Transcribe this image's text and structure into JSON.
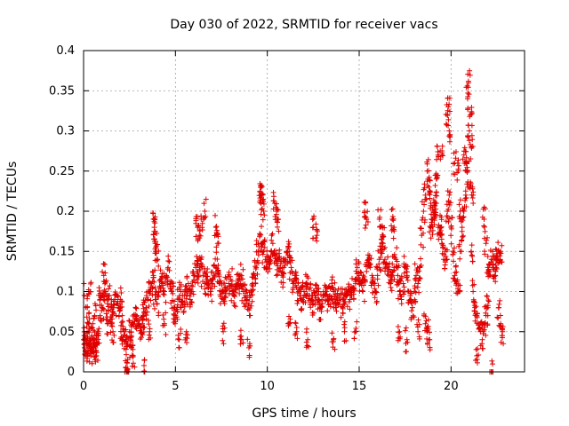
{
  "chart_data": {
    "type": "scatter",
    "title": "Day 030 of 2022, SRMTID for receiver vacs",
    "xlabel": "GPS time / hours",
    "ylabel": "SRMTID / TECUs",
    "xlim": [
      0,
      24
    ],
    "ylim": [
      0,
      0.4
    ],
    "xticks": [
      0,
      5,
      10,
      15,
      20
    ],
    "yticks": [
      0,
      0.05,
      0.1,
      0.15,
      0.2,
      0.25,
      0.3,
      0.35,
      0.4
    ],
    "xtick_labels": [
      "0",
      "5",
      "10",
      "15",
      "20"
    ],
    "ytick_labels": [
      "0",
      "0.05",
      "0.1",
      "0.15",
      "0.2",
      "0.25",
      "0.3",
      "0.35",
      "0.4"
    ],
    "grid": true,
    "marker": "plus",
    "color": "#e00000",
    "series": [
      {
        "name": "SRMTID",
        "x": [
          0.0,
          0.05,
          0.1,
          0.15,
          0.2,
          0.25,
          0.3,
          0.35,
          0.4,
          0.45,
          0.5,
          0.55,
          0.6,
          0.65,
          0.7,
          0.75,
          0.8,
          0.9,
          1.0,
          1.1,
          1.2,
          1.3,
          1.4,
          1.5,
          1.6,
          1.7,
          1.8,
          1.9,
          2.0,
          2.1,
          2.2,
          2.3,
          2.4,
          2.5,
          2.6,
          2.7,
          2.8,
          2.9,
          3.0,
          3.1,
          3.2,
          3.25,
          3.3,
          3.4,
          3.5,
          3.6,
          3.7,
          3.8,
          3.9,
          4.0,
          4.1,
          4.2,
          4.3,
          4.4,
          4.5,
          4.6,
          4.7,
          4.8,
          4.9,
          5.0,
          5.1,
          5.2,
          5.3,
          5.4,
          5.5,
          5.6,
          5.7,
          5.8,
          5.9,
          6.0,
          6.1,
          6.2,
          6.3,
          6.4,
          6.5,
          6.6,
          6.7,
          6.8,
          6.9,
          7.0,
          7.1,
          7.2,
          7.3,
          7.4,
          7.5,
          7.6,
          7.7,
          7.8,
          7.9,
          8.0,
          8.1,
          8.2,
          8.3,
          8.4,
          8.5,
          8.6,
          8.7,
          8.8,
          8.9,
          9.0,
          9.1,
          9.2,
          9.3,
          9.4,
          9.5,
          9.6,
          9.7,
          9.8,
          9.9,
          10.0,
          10.1,
          10.2,
          10.3,
          10.4,
          10.5,
          10.6,
          10.7,
          10.8,
          10.9,
          11.0,
          11.1,
          11.2,
          11.3,
          11.4,
          11.5,
          11.6,
          11.7,
          11.8,
          11.9,
          12.0,
          12.1,
          12.2,
          12.3,
          12.4,
          12.5,
          12.6,
          12.7,
          12.8,
          12.9,
          13.0,
          13.1,
          13.2,
          13.3,
          13.4,
          13.5,
          13.6,
          13.7,
          13.8,
          13.9,
          14.0,
          14.1,
          14.2,
          14.3,
          14.4,
          14.5,
          14.6,
          14.7,
          14.8,
          14.9,
          15.0,
          15.1,
          15.2,
          15.3,
          15.4,
          15.5,
          15.6,
          15.7,
          15.8,
          15.9,
          16.0,
          16.1,
          16.2,
          16.3,
          16.4,
          16.5,
          16.6,
          16.7,
          16.8,
          16.9,
          17.0,
          17.1,
          17.2,
          17.3,
          17.4,
          17.5,
          17.6,
          17.7,
          17.8,
          17.9,
          18.0,
          18.1,
          18.2,
          18.3,
          18.4,
          18.5,
          18.6,
          18.7,
          18.8,
          18.9,
          19.0,
          19.1,
          19.2,
          19.3,
          19.4,
          19.5,
          19.6,
          19.7,
          19.8,
          19.9,
          20.0,
          20.1,
          20.2,
          20.3,
          20.4,
          20.5,
          20.6,
          20.7,
          20.8,
          20.9,
          21.0,
          21.1,
          21.2,
          21.3,
          21.4,
          21.5,
          21.6,
          21.7,
          21.8,
          21.9,
          22.0,
          22.1,
          22.2,
          22.3,
          22.4,
          22.5,
          22.6,
          22.7,
          22.8,
          0.02,
          0.2,
          0.35,
          0.6,
          0.9,
          1.3,
          1.6,
          2.3,
          2.4,
          3.3,
          3.8,
          3.85,
          3.9,
          3.95,
          4.0,
          6.2,
          6.3,
          6.4,
          6.6,
          7.2,
          7.3,
          9.6,
          9.65,
          9.7,
          9.8,
          10.4,
          10.5,
          10.6,
          12.5,
          12.7,
          15.3,
          15.4,
          16.1,
          16.3,
          16.8,
          16.9,
          19.4,
          19.5,
          19.8,
          19.85,
          19.9,
          20.2,
          20.4,
          20.5,
          20.7,
          20.8,
          20.9,
          20.95,
          21.0,
          21.05,
          21.1,
          21.2,
          21.8,
          21.9,
          22.0,
          22.5,
          22.6,
          22.7,
          18.6,
          18.7,
          18.8,
          18.9,
          19.0,
          19.1,
          19.2,
          19.3,
          1.1,
          1.5,
          2.1,
          2.6,
          2.7,
          3.6,
          4.4,
          5.2,
          5.6,
          7.6,
          8.6,
          9.0,
          11.2,
          11.6,
          12.2,
          13.6,
          14.2,
          14.8,
          17.2,
          17.6,
          18.2,
          21.4,
          22.2
        ],
        "y": [
          0.04,
          0.03,
          0.045,
          0.025,
          0.035,
          0.05,
          0.06,
          0.03,
          0.02,
          0.045,
          0.025,
          0.035,
          0.04,
          0.03,
          0.02,
          0.035,
          0.05,
          0.07,
          0.08,
          0.09,
          0.1,
          0.085,
          0.095,
          0.08,
          0.075,
          0.09,
          0.085,
          0.08,
          0.09,
          0.07,
          0.05,
          0.04,
          0.035,
          0.05,
          0.045,
          0.06,
          0.065,
          0.07,
          0.06,
          0.055,
          0.06,
          0.07,
          0.075,
          0.08,
          0.09,
          0.1,
          0.11,
          0.12,
          0.09,
          0.085,
          0.1,
          0.115,
          0.11,
          0.1,
          0.12,
          0.13,
          0.11,
          0.1,
          0.08,
          0.07,
          0.075,
          0.09,
          0.1,
          0.085,
          0.095,
          0.1,
          0.11,
          0.09,
          0.1,
          0.12,
          0.13,
          0.125,
          0.13,
          0.14,
          0.12,
          0.11,
          0.115,
          0.105,
          0.1,
          0.11,
          0.12,
          0.13,
          0.125,
          0.11,
          0.1,
          0.09,
          0.1,
          0.105,
          0.11,
          0.115,
          0.1,
          0.095,
          0.105,
          0.11,
          0.115,
          0.12,
          0.1,
          0.095,
          0.09,
          0.085,
          0.095,
          0.11,
          0.12,
          0.13,
          0.15,
          0.17,
          0.16,
          0.15,
          0.14,
          0.13,
          0.14,
          0.15,
          0.16,
          0.145,
          0.135,
          0.14,
          0.13,
          0.12,
          0.13,
          0.14,
          0.15,
          0.145,
          0.13,
          0.11,
          0.12,
          0.115,
          0.1,
          0.095,
          0.09,
          0.1,
          0.11,
          0.105,
          0.095,
          0.09,
          0.085,
          0.095,
          0.1,
          0.09,
          0.08,
          0.085,
          0.095,
          0.1,
          0.09,
          0.095,
          0.105,
          0.1,
          0.09,
          0.085,
          0.095,
          0.09,
          0.08,
          0.085,
          0.095,
          0.1,
          0.09,
          0.095,
          0.105,
          0.115,
          0.13,
          0.12,
          0.11,
          0.1,
          0.115,
          0.125,
          0.14,
          0.13,
          0.12,
          0.11,
          0.1,
          0.12,
          0.14,
          0.15,
          0.16,
          0.14,
          0.13,
          0.12,
          0.11,
          0.12,
          0.13,
          0.14,
          0.12,
          0.1,
          0.09,
          0.11,
          0.13,
          0.12,
          0.1,
          0.09,
          0.08,
          0.1,
          0.12,
          0.11,
          0.13,
          0.17,
          0.2,
          0.22,
          0.25,
          0.23,
          0.21,
          0.19,
          0.2,
          0.21,
          0.18,
          0.17,
          0.16,
          0.14,
          0.15,
          0.2,
          0.22,
          0.18,
          0.15,
          0.12,
          0.11,
          0.1,
          0.15,
          0.18,
          0.2,
          0.22,
          0.25,
          0.23,
          0.15,
          0.1,
          0.08,
          0.07,
          0.06,
          0.05,
          0.04,
          0.06,
          0.07,
          0.08,
          0.12,
          0.14,
          0.13,
          0.12,
          0.14,
          0.08,
          0.06,
          0.05,
          0.11,
          0.08,
          0.1,
          0.07,
          0.09,
          0.06,
          0.05,
          0.005,
          0.003,
          0.001,
          0.19,
          0.18,
          0.16,
          0.15,
          0.14,
          0.18,
          0.17,
          0.19,
          0.2,
          0.18,
          0.16,
          0.225,
          0.21,
          0.22,
          0.2,
          0.21,
          0.2,
          0.19,
          0.18,
          0.17,
          0.2,
          0.19,
          0.19,
          0.17,
          0.19,
          0.18,
          0.18,
          0.27,
          0.32,
          0.33,
          0.3,
          0.26,
          0.25,
          0.2,
          0.27,
          0.26,
          0.34,
          0.36,
          0.3,
          0.32,
          0.28,
          0.22,
          0.19,
          0.16,
          0.13,
          0.14,
          0.15,
          0.15,
          0.06,
          0.05,
          0.04,
          0.18,
          0.19,
          0.2,
          0.24,
          0.27,
          0.12,
          0.06,
          0.04,
          0.03,
          0.02,
          0.05,
          0.06,
          0.04,
          0.05,
          0.05,
          0.04,
          0.03,
          0.06,
          0.05,
          0.04,
          0.04,
          0.05,
          0.05,
          0.05,
          0.04,
          0.05,
          0.02,
          0.0
        ]
      }
    ]
  }
}
